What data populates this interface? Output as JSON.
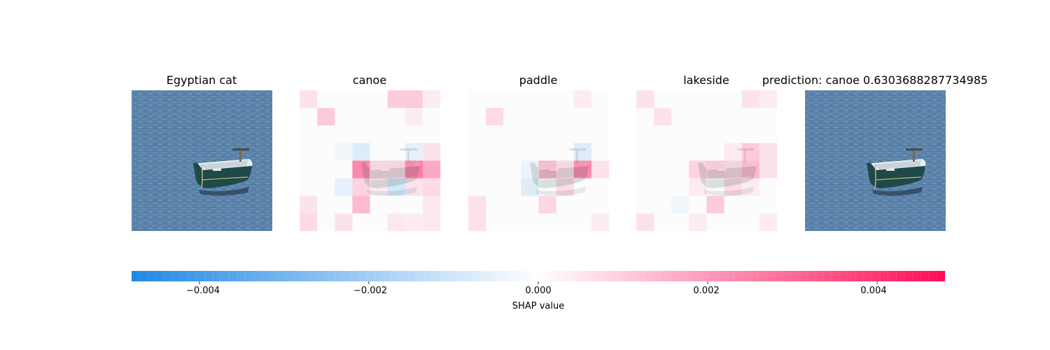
{
  "panels": {
    "original": {
      "title": "Egyptian cat"
    },
    "canoe": {
      "title": "canoe"
    },
    "paddle": {
      "title": "paddle"
    },
    "lakeside": {
      "title": "lakeside"
    },
    "prediction": {
      "title": "prediction: canoe 0.6303688287734985"
    }
  },
  "colors": {
    "negative": "#1e88e5",
    "neutral": "#ffffff",
    "positive": "#ff0d57",
    "water": "#5f86ab",
    "boat_hull": "#1f4a47"
  },
  "chart_data": {
    "type": "heatmap",
    "grid": {
      "rows": 8,
      "cols": 8
    },
    "colorbar": {
      "title": "SHAP value",
      "range": [
        -0.0048,
        0.0048
      ],
      "ticks": [
        -0.004,
        -0.002,
        0.0,
        0.002,
        0.004
      ],
      "tick_labels": [
        "−0.004",
        "−0.002",
        "0.000",
        "0.002",
        "0.004"
      ]
    },
    "series": [
      {
        "name": "canoe",
        "values": [
          [
            0.0006,
            0,
            0,
            0,
            0,
            0.0012,
            0.0012,
            0.0004
          ],
          [
            0,
            0.0012,
            0,
            0,
            0,
            0,
            0.0004,
            0
          ],
          [
            0,
            0,
            0,
            0,
            0,
            0,
            0,
            0
          ],
          [
            0,
            0,
            -0.0003,
            -0.0008,
            0,
            0,
            -0.0006,
            0.0006
          ],
          [
            0,
            0,
            0,
            0.0028,
            0.0009,
            0.0009,
            0.003,
            0.002
          ],
          [
            0,
            0,
            -0.0006,
            0.001,
            0.0004,
            -0.001,
            0.0006,
            0.0008
          ],
          [
            0.0006,
            0,
            0,
            0.0016,
            0,
            0,
            0,
            0.0005
          ],
          [
            0.0008,
            0,
            0.0006,
            0,
            0,
            0.0005,
            0.0004,
            0.0005
          ]
        ]
      },
      {
        "name": "paddle",
        "values": [
          [
            0,
            0,
            0,
            0,
            0,
            0,
            0.0004,
            0
          ],
          [
            0,
            0.0008,
            0,
            0,
            0,
            0,
            0,
            0
          ],
          [
            0,
            0,
            0,
            0,
            0,
            0,
            0,
            0
          ],
          [
            0,
            0,
            0,
            0,
            0,
            0,
            -0.0008,
            0
          ],
          [
            0,
            0,
            0,
            -0.0004,
            0.0016,
            0.0008,
            0.0028,
            0.0006
          ],
          [
            0,
            0,
            0,
            -0.0008,
            0,
            0.0008,
            0,
            0
          ],
          [
            0.0006,
            0,
            0,
            0,
            0.0009,
            0,
            0,
            0
          ],
          [
            0.0006,
            0,
            0,
            0,
            0,
            0,
            0,
            0.0004
          ]
        ]
      },
      {
        "name": "lakeside",
        "values": [
          [
            0.0006,
            0,
            0,
            0,
            0,
            0,
            0.0006,
            0.0004
          ],
          [
            0,
            0.0006,
            0,
            0,
            0,
            0,
            0,
            0
          ],
          [
            0,
            0,
            0,
            0,
            0,
            0,
            0,
            0
          ],
          [
            0,
            0,
            0,
            0,
            0,
            0.0004,
            0.0012,
            0.0006
          ],
          [
            0,
            0,
            0,
            0.001,
            0.0012,
            0.001,
            0.0016,
            0.0006
          ],
          [
            0,
            0,
            0,
            0.0004,
            0,
            0.0008,
            0.0004,
            0
          ],
          [
            0,
            0,
            -0.0003,
            0,
            0.0012,
            0,
            0,
            0
          ],
          [
            0.0006,
            0,
            0,
            0.0004,
            0,
            0,
            0,
            0.0004
          ]
        ]
      }
    ]
  }
}
